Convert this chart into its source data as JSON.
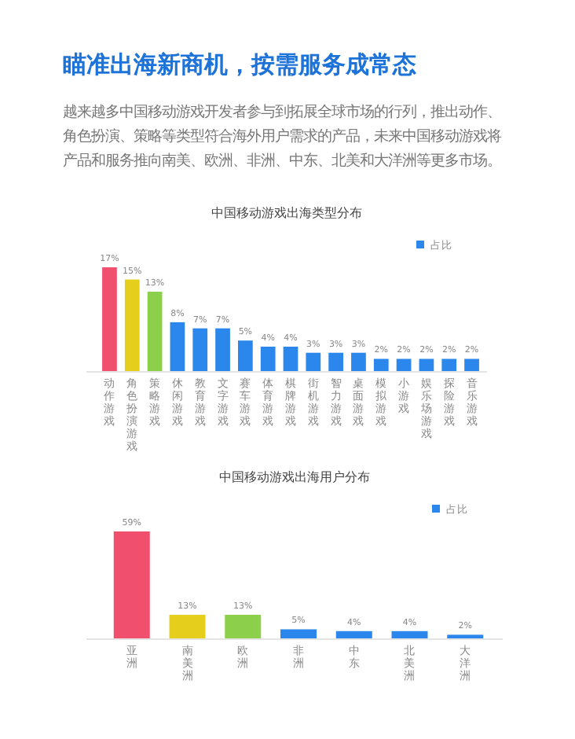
{
  "chart_data": [
    {
      "type": "other",
      "title": "瞄准出海新商机，按需服务成常态",
      "subtitle": "越来越多中国移动游戏开发者参与到拓展全球市场的行列，推出动作、角色扮演、策略等类型符合海外用户需求的产品，未来中国移动游戏将产品和服务推向南美、欧洲、非洲、中东、北美和大洋洲等更多市场。"
    },
    {
      "type": "bar",
      "title": "中国移动游戏出海类型分布",
      "categories": [
        "动作游戏",
        "角色扮演游戏",
        "策略游戏",
        "休闲游戏",
        "教育游戏",
        "文字游戏",
        "赛车游戏",
        "体育游戏",
        "棋牌游戏",
        "街机游戏",
        "智力游戏",
        "桌面游戏",
        "模拟游戏",
        "小游戏",
        "娱乐场游戏",
        "探险游戏",
        "音乐游戏"
      ],
      "legend": "top right",
      "series": [
        {
          "name": "占比",
          "color": "#2b87ec",
          "colors": [
            "#f0506e",
            "#e6cf1c",
            "#8ccf4a",
            "#2b87ec",
            "#2b87ec",
            "#2b87ec",
            "#2b87ec",
            "#2b87ec",
            "#2b87ec",
            "#2b87ec",
            "#2b87ec",
            "#2b87ec",
            "#2b87ec",
            "#2b87ec",
            "#2b87ec",
            "#2b87ec",
            "#2b87ec"
          ],
          "values": [
            17,
            15,
            13,
            8,
            7,
            7,
            5,
            4,
            4,
            3,
            3,
            3,
            2,
            2,
            2,
            2,
            2
          ],
          "value_labels": [
            "17%",
            "15%",
            "13%",
            "8%",
            "7%",
            "7%",
            "5%",
            "4%",
            "4%",
            "3%",
            "3%",
            "3%",
            "2%",
            "2%",
            "2%",
            "2%",
            "2%"
          ]
        }
      ]
    },
    {
      "type": "bar",
      "title": "中国移动游戏出海用户分布",
      "categories": [
        "亚洲",
        "南美洲",
        "欧洲",
        "非洲",
        "中东",
        "北美洲",
        "大洋洲"
      ],
      "legend": "top right",
      "series": [
        {
          "name": "占比",
          "color": "#2b87ec",
          "colors": [
            "#f0506e",
            "#e6cf1c",
            "#8ccf4a",
            "#2b87ec",
            "#2b87ec",
            "#2b87ec",
            "#2b87ec"
          ],
          "values": [
            59,
            13,
            13,
            5,
            4,
            4,
            2
          ],
          "value_labels": [
            "59%",
            "13%",
            "13%",
            "5%",
            "4%",
            "4%",
            "2%"
          ]
        }
      ]
    }
  ]
}
